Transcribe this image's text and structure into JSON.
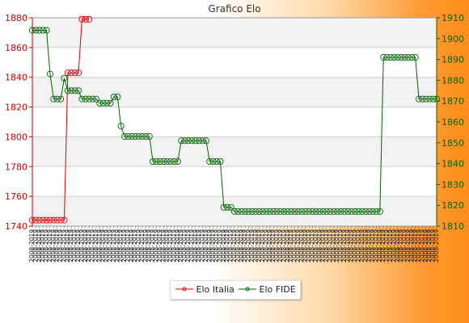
{
  "chart_data": {
    "type": "line",
    "title": "Grafico Elo",
    "x_tick_label": "2008-2019",
    "left_axis": {
      "ticks": [
        1740,
        1760,
        1780,
        1800,
        1820,
        1840,
        1860,
        1880
      ],
      "range": [
        1740,
        1880
      ],
      "color": "#cc0000"
    },
    "right_axis": {
      "ticks": [
        1810,
        1820,
        1830,
        1840,
        1850,
        1860,
        1870,
        1880,
        1890,
        1900,
        1910
      ],
      "range": [
        1810,
        1910
      ],
      "color": "#006600"
    },
    "series": [
      {
        "name": "Elo Italia",
        "axis": "left",
        "color": "#dd0000",
        "values": [
          1744,
          1744,
          1744,
          1744,
          1744,
          1744,
          1744,
          1744,
          1744,
          1744,
          1843,
          1843,
          1843,
          1843,
          1879,
          1879,
          1879
        ]
      },
      {
        "name": "Elo FIDE",
        "axis": "right",
        "color": "#006600",
        "values": [
          1904,
          1904,
          1904,
          1904,
          1904,
          1883,
          1871,
          1871,
          1871,
          1881,
          1875,
          1875,
          1875,
          1875,
          1871,
          1871,
          1871,
          1871,
          1871,
          1869,
          1869,
          1869,
          1869,
          1872,
          1872,
          1858,
          1853,
          1853,
          1853,
          1853,
          1853,
          1853,
          1853,
          1853,
          1841,
          1841,
          1841,
          1841,
          1841,
          1841,
          1841,
          1841,
          1851,
          1851,
          1851,
          1851,
          1851,
          1851,
          1851,
          1851,
          1841,
          1841,
          1841,
          1841,
          1819,
          1819,
          1819,
          1817,
          1817,
          1817,
          1817,
          1817,
          1817,
          1817,
          1817,
          1817,
          1817,
          1817,
          1817,
          1817,
          1817,
          1817,
          1817,
          1817,
          1817,
          1817,
          1817,
          1817,
          1817,
          1817,
          1817,
          1817,
          1817,
          1817,
          1817,
          1817,
          1817,
          1817,
          1817,
          1817,
          1817,
          1817,
          1817,
          1817,
          1817,
          1817,
          1817,
          1817,
          1817,
          1891,
          1891,
          1891,
          1891,
          1891,
          1891,
          1891,
          1891,
          1891,
          1891,
          1871,
          1871,
          1871,
          1871,
          1871,
          1871
        ]
      }
    ],
    "legend": {
      "placement": "bottom-center"
    },
    "grid": true
  }
}
